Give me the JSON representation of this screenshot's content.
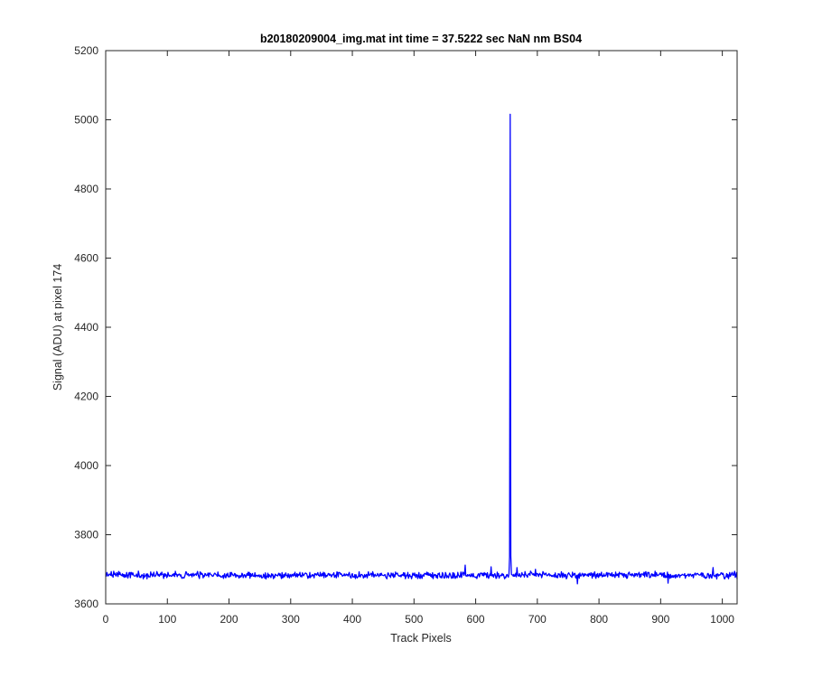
{
  "chart_data": {
    "type": "line",
    "title": "b20180209004_img.mat int time = 37.5222 sec  NaN nm BS04",
    "xlabel": "Track Pixels",
    "ylabel": "Signal (ADU) at pixel 174",
    "xlim": [
      0,
      1024
    ],
    "ylim": [
      3600,
      5200
    ],
    "xticks": [
      0,
      100,
      200,
      300,
      400,
      500,
      600,
      700,
      800,
      900,
      1000
    ],
    "yticks": [
      3600,
      3800,
      4000,
      4200,
      4400,
      4600,
      4800,
      5000,
      5200
    ],
    "grid": false,
    "series": [
      {
        "color": "#0000ff",
        "baseline_mean": 3683,
        "noise_amplitude": 12,
        "x_range": [
          1,
          1024
        ],
        "peak": {
          "x": 656,
          "y": 5016
        },
        "features": [
          {
            "x": 583,
            "y": 3712
          },
          {
            "x": 625,
            "y": 3707
          },
          {
            "x": 667,
            "y": 3705
          },
          {
            "x": 697,
            "y": 3700
          },
          {
            "x": 765,
            "y": 3658
          },
          {
            "x": 912,
            "y": 3660
          },
          {
            "x": 985,
            "y": 3705
          }
        ]
      }
    ]
  }
}
